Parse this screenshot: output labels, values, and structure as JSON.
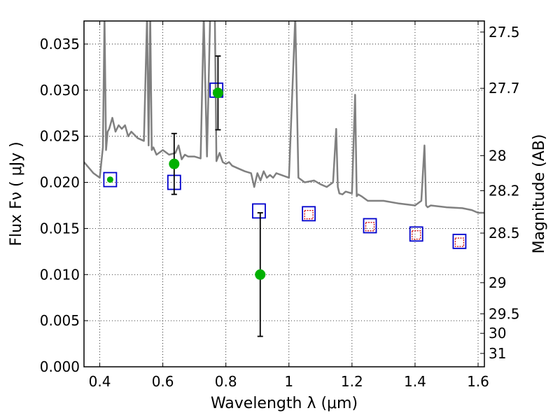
{
  "chart_data": {
    "type": "scatter",
    "xlabel": "Wavelength  λ (μm)",
    "ylabel": "Flux  Fν  ( μJy )",
    "y2label": "Magnitude (AB)",
    "xlim": [
      0.35,
      1.62
    ],
    "ylim": [
      0.0,
      0.0375
    ],
    "grid": true,
    "x_ticks": [
      0.4,
      0.6,
      0.8,
      1.0,
      1.2,
      1.4,
      1.6
    ],
    "x_tick_labels": [
      "0.4",
      "0.6",
      "0.8",
      "1",
      "1.2",
      "1.4",
      "1.6"
    ],
    "y_ticks": [
      0.0,
      0.005,
      0.01,
      0.015,
      0.02,
      0.025,
      0.03,
      0.035
    ],
    "y_tick_labels": [
      "0.000",
      "0.005",
      "0.010",
      "0.015",
      "0.020",
      "0.025",
      "0.030",
      "0.035"
    ],
    "y2_tick_labels": [
      "27.5",
      "27.7",
      "28",
      "28.2",
      "28.5",
      "29",
      "29.5",
      "30",
      "31"
    ],
    "y2_tick_flux": [
      0.0363,
      0.0302,
      0.0229,
      0.0191,
      0.0145,
      0.00912,
      0.00575,
      0.00363,
      0.00145
    ],
    "colors": {
      "spectrum": "#808080",
      "model_box": "#0000cc",
      "observed_point": "#00b000",
      "synthetic_box": "#cc0000",
      "error_bar": "#000000"
    },
    "series": [
      {
        "role": "spectrum-line",
        "x": [
          0.35,
          0.36,
          0.38,
          0.4,
          0.41,
          0.415,
          0.42,
          0.425,
          0.43,
          0.44,
          0.45,
          0.46,
          0.47,
          0.48,
          0.49,
          0.5,
          0.52,
          0.54,
          0.55,
          0.555,
          0.56,
          0.565,
          0.57,
          0.58,
          0.6,
          0.62,
          0.64,
          0.65,
          0.66,
          0.67,
          0.68,
          0.7,
          0.72,
          0.73,
          0.74,
          0.75,
          0.76,
          0.765,
          0.77,
          0.78,
          0.79,
          0.8,
          0.81,
          0.82,
          0.84,
          0.86,
          0.88,
          0.89,
          0.9,
          0.91,
          0.92,
          0.93,
          0.94,
          0.95,
          0.96,
          1.0,
          1.02,
          1.03,
          1.05,
          1.08,
          1.1,
          1.12,
          1.14,
          1.15,
          1.155,
          1.16,
          1.17,
          1.18,
          1.2,
          1.21,
          1.215,
          1.22,
          1.23,
          1.25,
          1.3,
          1.35,
          1.4,
          1.42,
          1.43,
          1.435,
          1.44,
          1.45,
          1.5,
          1.55,
          1.58,
          1.6,
          1.62
        ],
        "y": [
          0.0222,
          0.0218,
          0.021,
          0.0205,
          0.0238,
          0.038,
          0.0235,
          0.0255,
          0.0258,
          0.027,
          0.0255,
          0.0262,
          0.0258,
          0.0262,
          0.025,
          0.0255,
          0.0248,
          0.0245,
          0.038,
          0.024,
          0.038,
          0.0235,
          0.0238,
          0.023,
          0.0235,
          0.023,
          0.0232,
          0.024,
          0.0225,
          0.023,
          0.0228,
          0.0228,
          0.0226,
          0.038,
          0.0228,
          0.038,
          0.038,
          0.038,
          0.0223,
          0.0232,
          0.0222,
          0.022,
          0.0222,
          0.0218,
          0.0215,
          0.0212,
          0.021,
          0.0195,
          0.021,
          0.0202,
          0.0212,
          0.0205,
          0.0208,
          0.0205,
          0.021,
          0.0205,
          0.038,
          0.0205,
          0.02,
          0.0202,
          0.0198,
          0.0195,
          0.02,
          0.0258,
          0.0195,
          0.0188,
          0.0187,
          0.019,
          0.0188,
          0.0295,
          0.0185,
          0.0187,
          0.0185,
          0.018,
          0.018,
          0.0177,
          0.0175,
          0.018,
          0.024,
          0.0175,
          0.0173,
          0.0175,
          0.0173,
          0.0172,
          0.017,
          0.0167,
          0.0167
        ]
      },
      {
        "role": "model-photometry-boxes",
        "x": [
          0.433,
          0.636,
          0.77,
          0.905,
          1.063,
          1.257,
          1.404,
          1.541
        ],
        "y": [
          0.0203,
          0.02,
          0.03,
          0.0169,
          0.0166,
          0.0153,
          0.0144,
          0.0136
        ]
      },
      {
        "role": "synthetic-photometry-boxes",
        "x": [
          1.063,
          1.257,
          1.404,
          1.541
        ],
        "y": [
          0.0165,
          0.0152,
          0.0143,
          0.0135
        ]
      },
      {
        "role": "observed-photometry",
        "x": [
          0.433,
          0.636,
          0.775,
          0.909
        ],
        "y": [
          0.0203,
          0.022,
          0.0297,
          0.01
        ],
        "yerr": [
          null,
          0.0033,
          0.004,
          0.0067
        ]
      }
    ]
  }
}
